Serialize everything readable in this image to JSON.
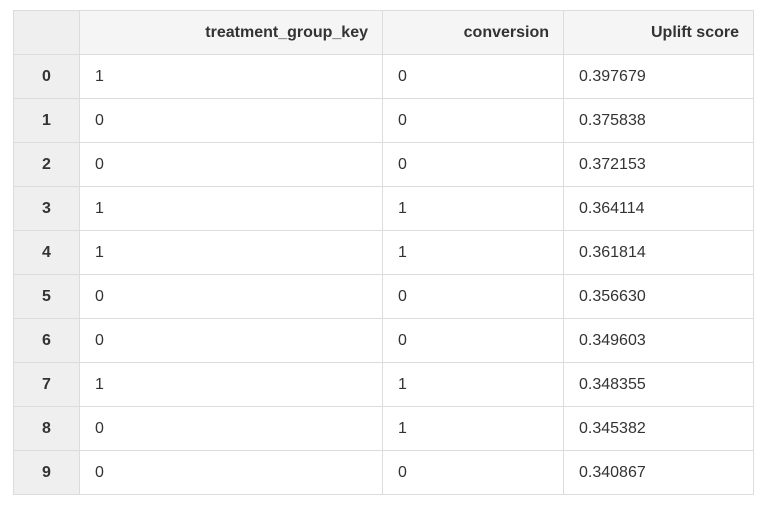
{
  "table": {
    "columns": [
      "",
      "treatment_group_key",
      "conversion",
      "Uplift score"
    ],
    "rows": [
      {
        "index": "0",
        "treatment_group_key": "1",
        "conversion": "0",
        "uplift_score": "0.397679"
      },
      {
        "index": "1",
        "treatment_group_key": "0",
        "conversion": "0",
        "uplift_score": "0.375838"
      },
      {
        "index": "2",
        "treatment_group_key": "0",
        "conversion": "0",
        "uplift_score": "0.372153"
      },
      {
        "index": "3",
        "treatment_group_key": "1",
        "conversion": "1",
        "uplift_score": "0.364114"
      },
      {
        "index": "4",
        "treatment_group_key": "1",
        "conversion": "1",
        "uplift_score": "0.361814"
      },
      {
        "index": "5",
        "treatment_group_key": "0",
        "conversion": "0",
        "uplift_score": "0.356630"
      },
      {
        "index": "6",
        "treatment_group_key": "0",
        "conversion": "0",
        "uplift_score": "0.349603"
      },
      {
        "index": "7",
        "treatment_group_key": "1",
        "conversion": "1",
        "uplift_score": "0.348355"
      },
      {
        "index": "8",
        "treatment_group_key": "0",
        "conversion": "1",
        "uplift_score": "0.345382"
      },
      {
        "index": "9",
        "treatment_group_key": "0",
        "conversion": "0",
        "uplift_score": "0.340867"
      }
    ]
  },
  "colors": {
    "header_bg": "#f5f5f5",
    "index_bg": "#efefef",
    "border": "#dcdcdc",
    "text": "#333333"
  }
}
